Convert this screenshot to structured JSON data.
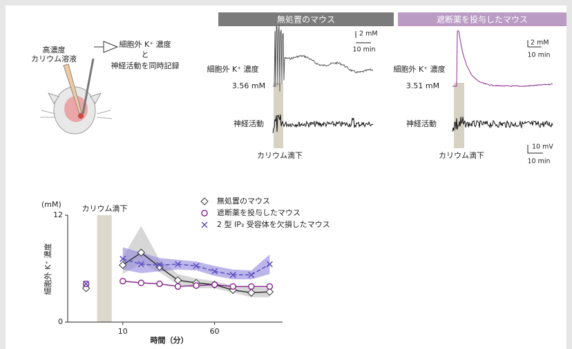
{
  "illustration": {
    "solution": [
      "高濃度",
      "カリウム溶液"
    ],
    "record": [
      "細胞外 K⁺ 濃度",
      "と",
      "神経活動を同時記録"
    ]
  },
  "panels": [
    {
      "title": "無処置のマウス",
      "k_label": "細胞外 K⁺ 濃度",
      "baseline": "3.56 mM",
      "neural_label": "神経活動",
      "drip_label": "カリウム滴下",
      "scale_k": [
        "2 mM",
        "10 min"
      ]
    },
    {
      "title": "遮断薬を投与したマウス",
      "k_label": "細胞外 K⁺ 濃度",
      "baseline": "3.51 mM",
      "neural_label": "神経活動",
      "drip_label": "カリウム滴下",
      "scale_k": [
        "2 mM",
        "10 min"
      ],
      "scale_v": [
        "10 mV",
        "10 min"
      ]
    }
  ],
  "chart_data": {
    "type": "line",
    "y_unit": "(mM)",
    "x_label": "時間（分）",
    "y_label": "細胞外 K⁺ 濃度",
    "shade": {
      "label": "カリウム滴下",
      "x": [
        -4,
        4
      ],
      "color": "#ddd8cc"
    },
    "x": [
      -10,
      10,
      20,
      30,
      40,
      50,
      60,
      70,
      80,
      90
    ],
    "series": [
      {
        "name": "無処置のマウス",
        "color": "#333333",
        "band_color": "#bdbdbd",
        "marker": "diamond",
        "values": [
          3.8,
          6.4,
          7.8,
          6.2,
          4.7,
          4.4,
          4.2,
          3.6,
          3.3,
          3.4
        ],
        "lower": [
          null,
          5.4,
          6.6,
          5.6,
          4.2,
          3.8,
          3.8,
          3.3,
          2.8,
          2.8
        ],
        "upper": [
          null,
          7.3,
          10.8,
          7.0,
          5.4,
          4.9,
          4.6,
          4.1,
          3.9,
          3.9
        ]
      },
      {
        "name": "遮断薬を投与したマウス",
        "color": "#8a2b8f",
        "marker": "circle",
        "values": [
          4.3,
          4.6,
          4.4,
          4.3,
          4.0,
          4.1,
          4.2,
          4.0,
          4.0,
          4.0
        ]
      },
      {
        "name": "2 型 IP₃ 受容体を欠損したマウス",
        "color": "#5a4fc0",
        "band_color": "#8f86dd",
        "marker": "x",
        "dashed": true,
        "values": [
          4.3,
          7.1,
          6.5,
          6.4,
          6.5,
          6.3,
          5.7,
          5.3,
          5.3,
          6.5
        ],
        "lower": [
          null,
          5.9,
          5.5,
          5.7,
          5.9,
          5.8,
          5.2,
          4.8,
          4.8,
          5.4
        ],
        "upper": [
          null,
          8.4,
          7.8,
          7.2,
          7.0,
          6.8,
          6.3,
          5.9,
          5.8,
          7.6
        ]
      }
    ],
    "xlim": [
      -20,
      97
    ],
    "ylim": [
      0,
      12
    ],
    "xticks": [
      10,
      60
    ],
    "yticks": [
      0,
      12
    ]
  }
}
